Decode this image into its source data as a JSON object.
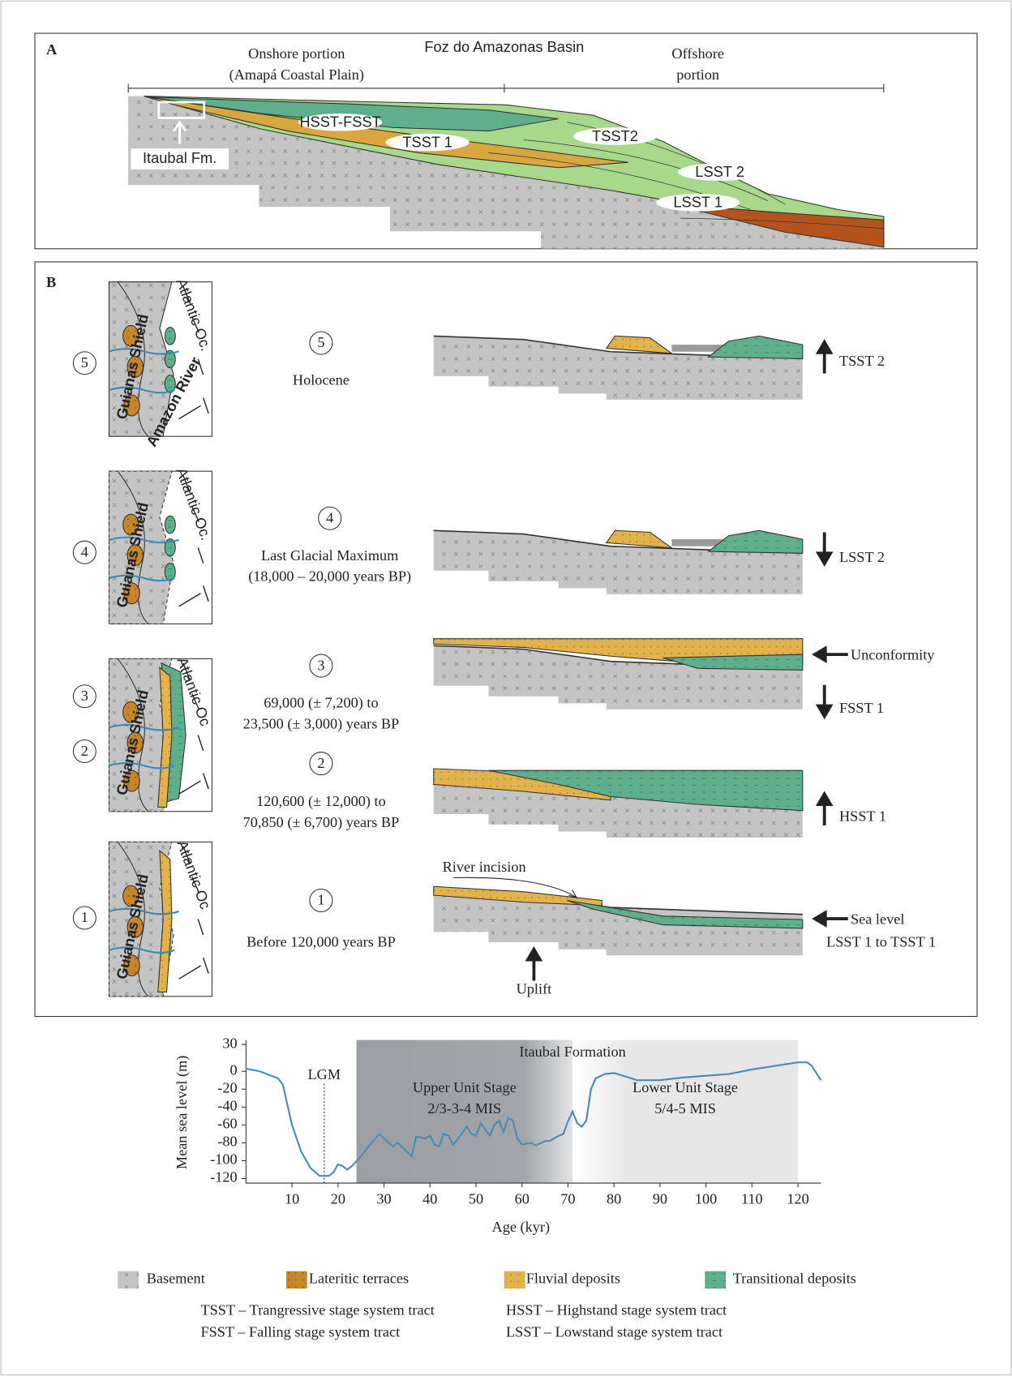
{
  "panel_a": {
    "label": "A",
    "title": "Foz do Amazonas Basin",
    "onshore": "Onshore portion",
    "onshore_detail": "(Amapá Coastal Plain)",
    "offshore": "Offshore",
    "offshore_detail": "portion",
    "formation": "Itaubal Fm.",
    "units": [
      "HSST-FSST",
      "TSST 1",
      "TSST2",
      "LSST 2",
      "LSST 1"
    ]
  },
  "panel_b": {
    "label": "B",
    "stages": [
      {
        "number": "5",
        "period": "Holocene",
        "tract": "TSST 2"
      },
      {
        "number": "4",
        "period": "Last Glacial Maximum",
        "period_detail": "(18,000 – 20,000 years BP)",
        "tract": "LSST 2"
      },
      {
        "number": "3",
        "period": "69,000 (± 7,200) to",
        "period_detail": "23,500 (± 3,000) years BP",
        "tract": "FSST 1",
        "note": "Unconformity"
      },
      {
        "number": "2",
        "period": "120,600 (± 12,000) to",
        "period_detail": "70,850 (± 6,700) years BP",
        "tract": "HSST 1"
      },
      {
        "number": "1",
        "period": "Before 120,000 years BP",
        "tract": "LSST 1 to TSST 1",
        "note": "Sea level",
        "incision": "River incision",
        "uplift": "Uplift"
      }
    ],
    "maps": [
      {
        "shield": "Guianas Shield",
        "ocean": "Atlantic Oc.",
        "river": "Amazon River"
      },
      {
        "shield": "Guianas Shield",
        "ocean": "Atlantic Oc."
      },
      {
        "shield": "Guianas Shield",
        "ocean": "Atlantic Oc"
      },
      {
        "shield": "Guianas Shield",
        "ocean": "Atlantic Oc"
      }
    ]
  },
  "chart_data": {
    "type": "line",
    "x_label": "Age (kyr)",
    "y_label": "Mean sea level (m)",
    "color": "#4a8db5",
    "annotation": "Itaubal Formation",
    "lgm": {
      "label": "LGM",
      "x": 17
    },
    "regions": [
      {
        "start": 24,
        "end": 71,
        "label": "Upper Unit Stage",
        "sublabel": "2/3-3-4 MIS"
      },
      {
        "start": 71,
        "end": 120,
        "label": "Lower Unit Stage",
        "sublabel": "5/4-5 MIS"
      }
    ],
    "x": [
      0,
      3,
      7,
      8,
      10,
      12,
      14,
      16,
      18,
      19,
      20,
      21,
      22,
      23,
      25,
      27,
      29,
      31,
      32,
      33,
      35,
      36,
      37,
      39,
      40,
      41,
      42,
      43,
      44,
      45,
      46,
      48,
      49,
      50,
      51,
      52,
      53,
      54,
      55,
      56,
      57,
      58,
      59,
      60,
      62,
      63,
      65,
      66,
      68,
      69,
      70,
      71,
      72,
      73,
      74,
      75,
      76,
      78,
      80,
      82,
      85,
      90,
      95,
      100,
      105,
      110,
      115,
      120,
      122,
      123,
      125
    ],
    "values": [
      3,
      0,
      -8,
      -15,
      -60,
      -90,
      -108,
      -117,
      -117,
      -113,
      -104,
      -106,
      -110,
      -106,
      -95,
      -82,
      -70,
      -80,
      -84,
      -80,
      -90,
      -95,
      -73,
      -75,
      -72,
      -82,
      -84,
      -70,
      -72,
      -82,
      -76,
      -62,
      -70,
      -72,
      -58,
      -65,
      -72,
      -60,
      -55,
      -68,
      -52,
      -55,
      -75,
      -82,
      -80,
      -83,
      -78,
      -78,
      -72,
      -70,
      -56,
      -45,
      -58,
      -62,
      -55,
      -20,
      -8,
      -3,
      -2,
      -5,
      -10,
      -10,
      -7,
      -5,
      -3,
      2,
      6,
      10,
      10,
      6,
      -10
    ],
    "xlim": [
      0,
      125
    ],
    "ylim": [
      -125,
      35
    ],
    "xticks": [
      10,
      20,
      30,
      40,
      50,
      60,
      70,
      80,
      90,
      100,
      110,
      120
    ],
    "yticks": [
      30,
      0,
      -20,
      -40,
      -60,
      -80,
      -100,
      -120
    ]
  },
  "legend": [
    "Basement",
    "Lateritic terraces",
    "Fluvial deposits",
    "Transitional deposits"
  ],
  "abbreviations": [
    "TSST – Trangressive stage system tract",
    "FSST – Falling stage system tract",
    "HSST – Highstand stage system tract",
    "LSST – Lowstand stage system tract"
  ]
}
